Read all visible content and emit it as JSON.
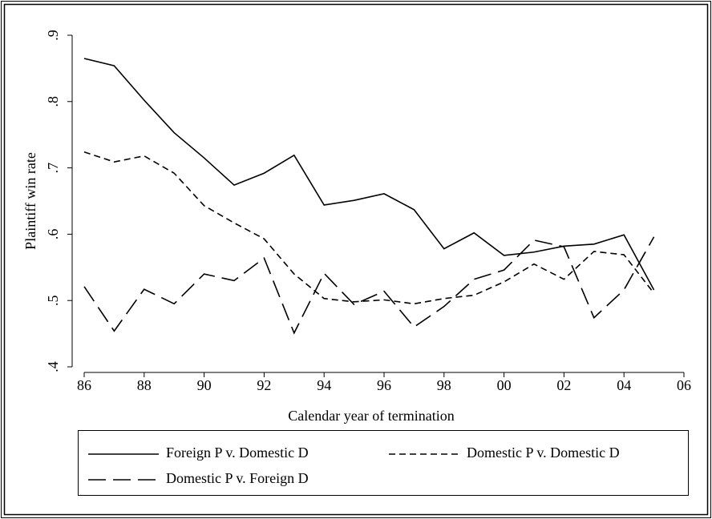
{
  "chart_data": {
    "type": "line",
    "xlabel": "Calendar year of termination",
    "ylabel": "Plaintiff win rate",
    "categories": [
      "86",
      null,
      "88",
      null,
      "90",
      null,
      "92",
      null,
      "94",
      null,
      "96",
      null,
      "98",
      null,
      "00",
      null,
      "02",
      null,
      "04",
      null,
      "06"
    ],
    "series": [
      {
        "name": "Foreign P v. Domestic D",
        "color": "#000000",
        "dash": "solid",
        "values": [
          0.865,
          0.854,
          0.802,
          0.753,
          0.715,
          0.674,
          0.692,
          0.719,
          0.644,
          0.651,
          0.661,
          0.637,
          0.578,
          0.602,
          0.568,
          0.573,
          0.582,
          0.585,
          0.599,
          0.516,
          null
        ]
      },
      {
        "name": "Domestic P v. Domestic D",
        "color": "#000000",
        "dash": "short",
        "values": [
          0.724,
          0.709,
          0.718,
          0.692,
          0.643,
          0.617,
          0.593,
          0.54,
          0.503,
          0.498,
          0.501,
          0.495,
          0.503,
          0.508,
          0.528,
          0.555,
          0.532,
          0.574,
          0.569,
          0.511,
          null
        ]
      },
      {
        "name": "Domestic P v. Foreign D",
        "color": "#000000",
        "dash": "long",
        "values": [
          0.521,
          0.454,
          0.517,
          0.495,
          0.54,
          0.53,
          0.564,
          0.451,
          0.541,
          0.494,
          0.514,
          0.46,
          0.491,
          0.532,
          0.546,
          0.591,
          0.581,
          0.474,
          0.516,
          0.596,
          null
        ]
      }
    ],
    "ylim": [
      0.4,
      0.9
    ],
    "yticks": [
      {
        "value": 0.4,
        "label": ".4"
      },
      {
        "value": 0.5,
        "label": ".5"
      },
      {
        "value": 0.6,
        "label": ".6"
      },
      {
        "value": 0.7,
        "label": ".7"
      },
      {
        "value": 0.8,
        "label": ".8"
      },
      {
        "value": 0.9,
        "label": ".9"
      }
    ],
    "grid": false,
    "legend": "bottom"
  }
}
